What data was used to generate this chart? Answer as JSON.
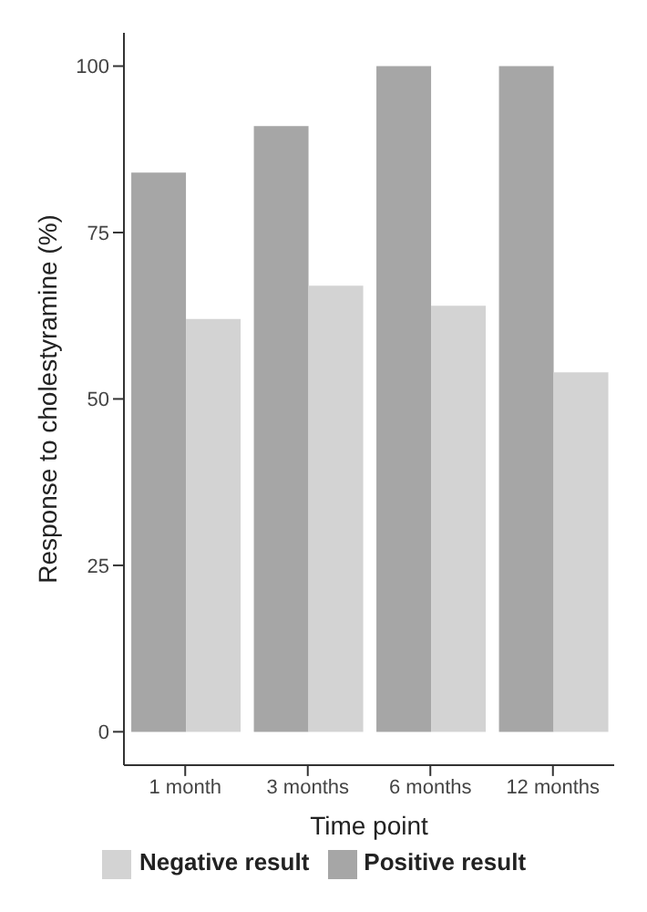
{
  "chart_data": {
    "type": "bar",
    "xlabel": "Time point",
    "ylabel": "Response to cholestyramine (%)",
    "categories": [
      "1 month",
      "3 months",
      "6 months",
      "12 months"
    ],
    "series": [
      {
        "name": "Positive result",
        "color": "#a6a6a6",
        "values": [
          84,
          91,
          100,
          100
        ]
      },
      {
        "name": "Negative result",
        "color": "#d3d3d3",
        "values": [
          62,
          67,
          64,
          54
        ]
      }
    ],
    "ylim": [
      -5,
      105
    ],
    "yticks": [
      0,
      25,
      50,
      75,
      100
    ],
    "grid": false,
    "legend": "bottom"
  }
}
